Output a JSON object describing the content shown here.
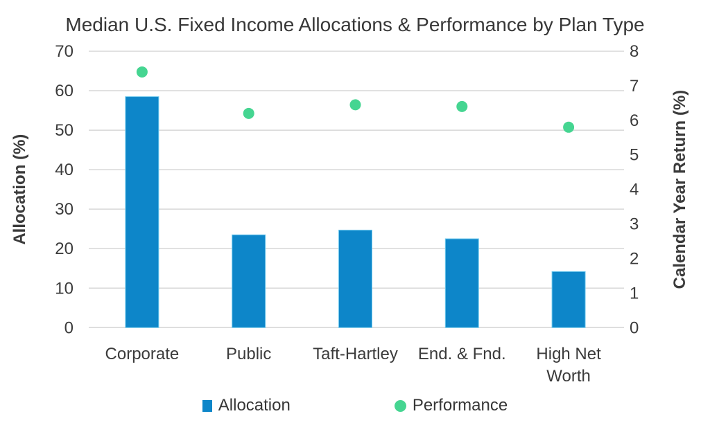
{
  "chart_data": {
    "type": "bar",
    "title": "Median U.S. Fixed Income Allocations & Performance by Plan Type",
    "categories": [
      "Corporate",
      "Public",
      "Taft-Hartley",
      "End. & Fnd.",
      "High Net Worth"
    ],
    "series": [
      {
        "name": "Allocation",
        "type": "bar",
        "axis": "left",
        "values": [
          58.5,
          23.5,
          24.7,
          22.5,
          14.2
        ]
      },
      {
        "name": "Performance",
        "type": "scatter",
        "axis": "right",
        "values": [
          7.4,
          6.2,
          6.45,
          6.4,
          5.8
        ]
      }
    ],
    "left_axis": {
      "label": "Allocation (%)",
      "min": 0,
      "max": 70,
      "step": 10,
      "ticks": [
        0,
        10,
        20,
        30,
        40,
        50,
        60,
        70
      ]
    },
    "right_axis": {
      "label": "Calendar Year Return (%)",
      "min": 0,
      "max": 8,
      "step": 1,
      "ticks": [
        0,
        1,
        2,
        3,
        4,
        5,
        6,
        7,
        8
      ]
    },
    "grid": true,
    "legend_position": "bottom",
    "colors": {
      "bar": "#0D86C9",
      "bar_edge": "#74CCEF",
      "dot": "#45D591",
      "grid": "#D7D7D7",
      "text": "#3B3B3B",
      "background": "#FFFFFF"
    }
  }
}
